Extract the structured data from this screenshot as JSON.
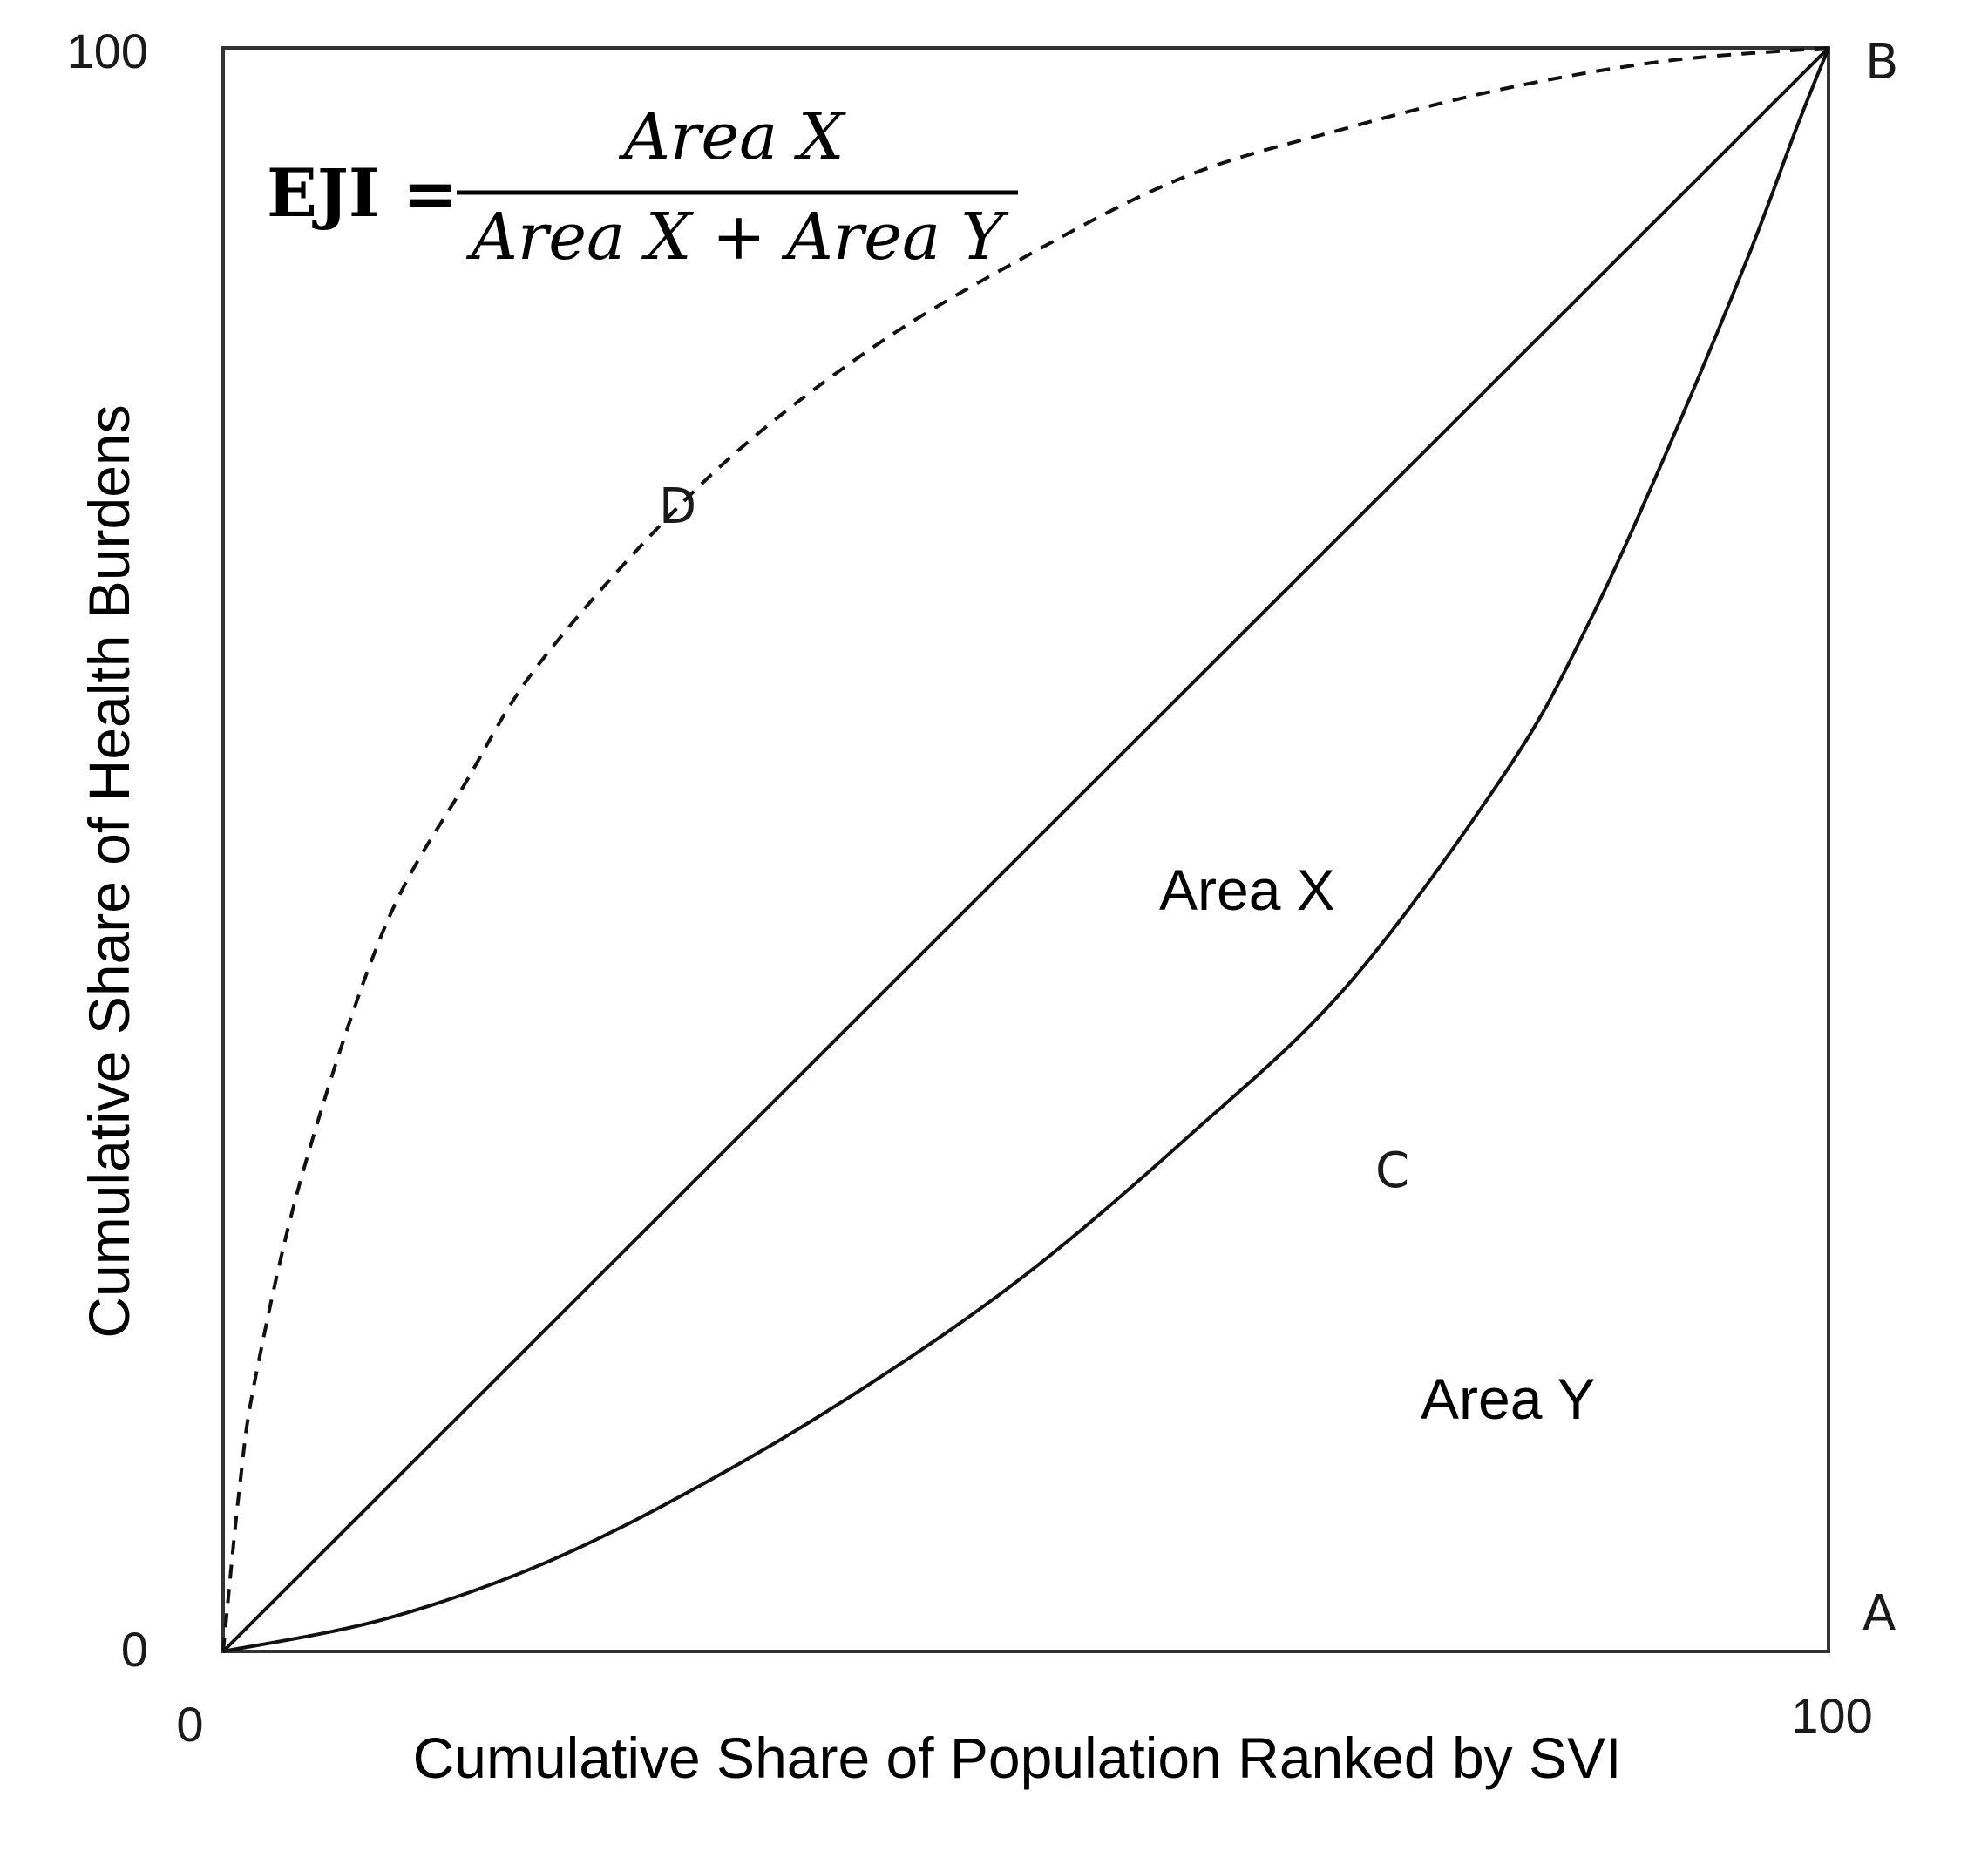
{
  "chart_data": {
    "type": "line",
    "xlabel": "Cumulative Share of Population Ranked by SVI",
    "ylabel": "Cumulative Share of Health Burdens",
    "xlim": [
      0,
      100
    ],
    "ylim": [
      0,
      100
    ],
    "x_ticks": [
      "0",
      "100"
    ],
    "y_ticks": [
      "0",
      "100"
    ],
    "grid": false,
    "series": [
      {
        "label": "D",
        "style": "dashed",
        "x": [
          0,
          1,
          2,
          5,
          10,
          15,
          20,
          30,
          40,
          50,
          60,
          70,
          80,
          90,
          100
        ],
        "y": [
          0,
          10,
          17,
          30,
          45,
          54,
          62,
          73,
          81,
          87,
          92,
          95,
          97.5,
          99.2,
          100
        ]
      },
      {
        "label": "",
        "style": "solid",
        "x": [
          0,
          100
        ],
        "y": [
          0,
          100
        ]
      },
      {
        "label": "C",
        "style": "solid",
        "x": [
          0,
          10,
          20,
          30,
          40,
          50,
          60,
          70,
          80,
          85,
          90,
          95,
          98,
          100
        ],
        "y": [
          0,
          2,
          5.5,
          10.5,
          16.5,
          23.5,
          32,
          41.5,
          55,
          64,
          75,
          87,
          95,
          100
        ]
      }
    ],
    "point_labels": [
      {
        "text": "A",
        "x": 100,
        "y": 0
      },
      {
        "text": "B",
        "x": 100,
        "y": 100
      }
    ],
    "region_labels": [
      {
        "text": "Area X",
        "x": 65,
        "y": 47
      },
      {
        "text": "Area Y",
        "x": 81,
        "y": 15
      }
    ],
    "formula": {
      "lhs": "EJI =",
      "numerator": "Area X",
      "denominator": "Area X + Area Y"
    }
  }
}
